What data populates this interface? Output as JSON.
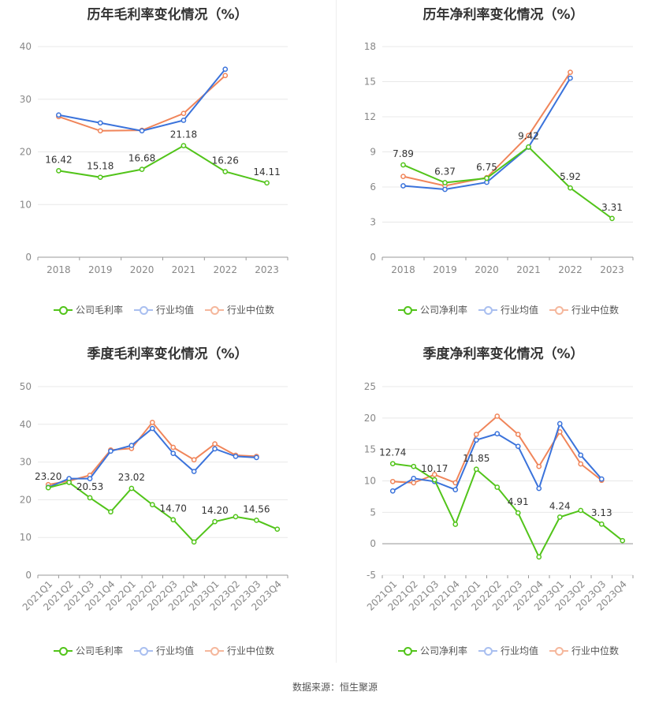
{
  "colors": {
    "company": "#52c41a",
    "industry_avg": "#3b73db",
    "industry_median": "#f0855a"
  },
  "source": "数据来源：恒生聚源",
  "chart_data": [
    {
      "type": "line",
      "title": "历年毛利率变化情况（%）",
      "categories": [
        "2018",
        "2019",
        "2020",
        "2021",
        "2022",
        "2023"
      ],
      "ylim": [
        0,
        40
      ],
      "yticks": [
        0,
        10,
        20,
        30,
        40
      ],
      "series": [
        {
          "name": "公司毛利率",
          "key": "company",
          "values": [
            16.42,
            15.18,
            16.68,
            21.18,
            16.26,
            14.11
          ],
          "labels": [
            "16.42",
            "15.18",
            "16.68",
            "21.18",
            "16.26",
            "14.11"
          ]
        },
        {
          "name": "行业均值",
          "key": "industry_avg",
          "values": [
            27.0,
            25.5,
            24.0,
            26.0,
            35.7,
            null
          ]
        },
        {
          "name": "行业中位数",
          "key": "industry_median",
          "values": [
            26.7,
            24.0,
            24.1,
            27.3,
            34.5,
            null
          ]
        }
      ]
    },
    {
      "type": "line",
      "title": "历年净利率变化情况（%）",
      "categories": [
        "2018",
        "2019",
        "2020",
        "2021",
        "2022",
        "2023"
      ],
      "ylim": [
        0,
        18
      ],
      "yticks": [
        0,
        3,
        6,
        9,
        12,
        15,
        18
      ],
      "series": [
        {
          "name": "公司净利率",
          "key": "company",
          "values": [
            7.89,
            6.37,
            6.75,
            9.42,
            5.92,
            3.31
          ],
          "labels": [
            "7.89",
            "6.37",
            "6.75",
            "9.42",
            "5.92",
            "3.31"
          ]
        },
        {
          "name": "行业均值",
          "key": "industry_avg",
          "values": [
            6.1,
            5.8,
            6.4,
            9.4,
            15.3,
            null
          ]
        },
        {
          "name": "行业中位数",
          "key": "industry_median",
          "values": [
            6.9,
            6.1,
            6.8,
            10.4,
            15.8,
            null
          ]
        }
      ]
    },
    {
      "type": "line",
      "title": "季度毛利率变化情况（%）",
      "categories": [
        "2021Q1",
        "2021Q2",
        "2021Q3",
        "2021Q4",
        "2022Q1",
        "2022Q2",
        "2022Q3",
        "2022Q4",
        "2023Q1",
        "2023Q2",
        "2023Q3",
        "2023Q4"
      ],
      "ylim": [
        0,
        50
      ],
      "yticks": [
        0,
        10,
        20,
        30,
        40,
        50
      ],
      "series": [
        {
          "name": "公司毛利率",
          "key": "company",
          "values": [
            23.2,
            24.6,
            20.53,
            16.8,
            23.02,
            18.7,
            14.7,
            8.8,
            14.2,
            15.5,
            14.56,
            12.2
          ],
          "labels": [
            "23.20",
            "",
            "20.53",
            "",
            "23.02",
            "",
            "14.70",
            "",
            "14.20",
            "",
            "14.56",
            ""
          ]
        },
        {
          "name": "行业均值",
          "key": "industry_avg",
          "values": [
            23.3,
            25.6,
            25.6,
            32.9,
            34.4,
            38.9,
            32.3,
            27.5,
            33.5,
            31.5,
            31.2,
            null
          ]
        },
        {
          "name": "行业中位数",
          "key": "industry_median",
          "values": [
            24.0,
            25.0,
            26.5,
            33.2,
            33.6,
            40.5,
            33.9,
            30.6,
            34.8,
            31.8,
            31.5,
            null
          ]
        }
      ]
    },
    {
      "type": "line",
      "title": "季度净利率变化情况（%）",
      "categories": [
        "2021Q1",
        "2021Q2",
        "2021Q3",
        "2021Q4",
        "2022Q1",
        "2022Q2",
        "2022Q3",
        "2022Q4",
        "2023Q1",
        "2023Q2",
        "2023Q3",
        "2023Q4"
      ],
      "ylim": [
        -5,
        25
      ],
      "yticks": [
        -5,
        0,
        5,
        10,
        15,
        20,
        25
      ],
      "series": [
        {
          "name": "公司净利率",
          "key": "company",
          "values": [
            12.74,
            12.3,
            10.17,
            3.1,
            11.85,
            9.0,
            4.91,
            -2.1,
            4.24,
            5.3,
            3.13,
            0.5
          ],
          "labels": [
            "12.74",
            "",
            "10.17",
            "",
            "11.85",
            "",
            "4.91",
            "",
            "4.24",
            "",
            "3.13",
            ""
          ]
        },
        {
          "name": "行业均值",
          "key": "industry_avg",
          "values": [
            8.4,
            10.4,
            9.9,
            8.6,
            16.5,
            17.5,
            15.5,
            8.8,
            19.1,
            14.1,
            10.3,
            null
          ]
        },
        {
          "name": "行业中位数",
          "key": "industry_median",
          "values": [
            9.9,
            9.7,
            11.0,
            9.7,
            17.4,
            20.3,
            17.4,
            12.3,
            17.8,
            12.7,
            10.1,
            null
          ]
        }
      ]
    }
  ]
}
